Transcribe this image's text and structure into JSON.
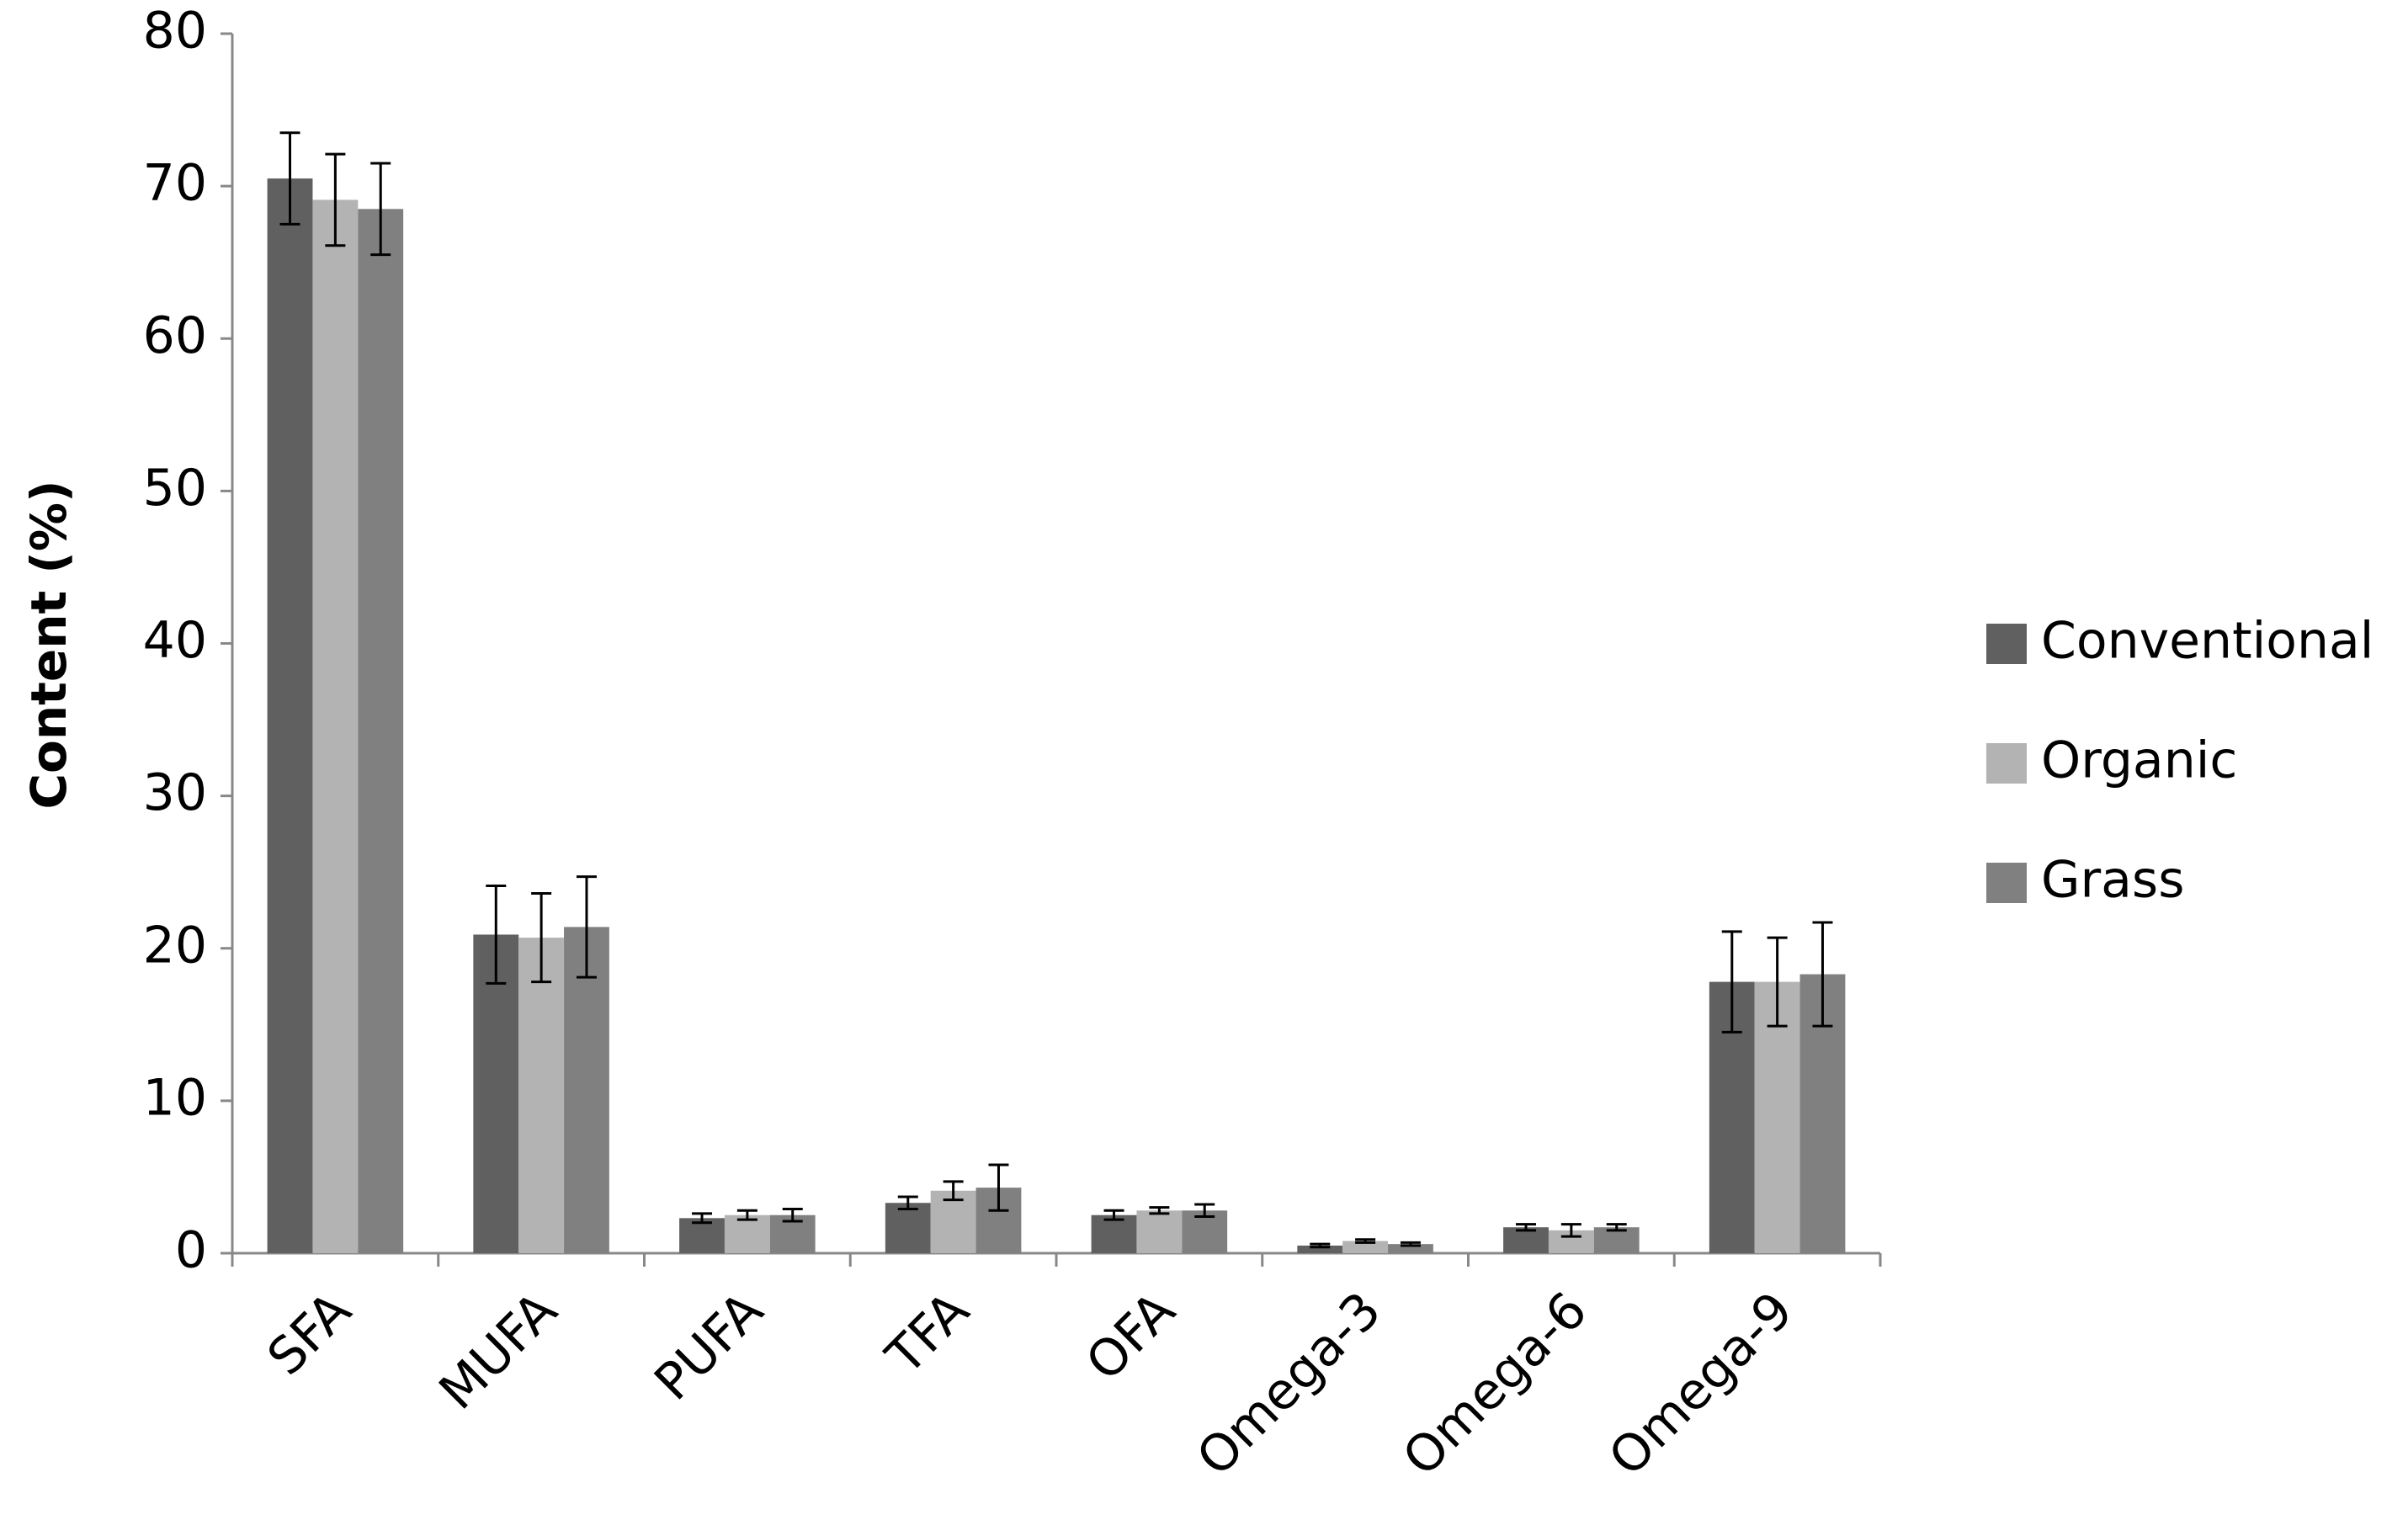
{
  "chart_data": {
    "type": "bar",
    "ylabel": "Content (%)",
    "categories": [
      "SFA",
      "MUFA",
      "PUFA",
      "TFA",
      "OFA",
      "Omega-3",
      "Omega-6",
      "Omega-9"
    ],
    "series": [
      {
        "name": "Conventional",
        "color": "#606060",
        "values": [
          70.5,
          20.9,
          2.3,
          3.3,
          2.5,
          0.5,
          1.7,
          17.8
        ],
        "errors": [
          3.0,
          3.2,
          0.3,
          0.4,
          0.3,
          0.1,
          0.2,
          3.3
        ]
      },
      {
        "name": "Organic",
        "color": "#b3b3b3",
        "values": [
          69.1,
          20.7,
          2.5,
          4.1,
          2.8,
          0.8,
          1.5,
          17.8
        ],
        "errors": [
          3.0,
          2.9,
          0.3,
          0.6,
          0.2,
          0.1,
          0.4,
          2.9
        ]
      },
      {
        "name": "Grass",
        "color": "#808080",
        "values": [
          68.5,
          21.4,
          2.5,
          4.3,
          2.8,
          0.6,
          1.7,
          18.3
        ],
        "errors": [
          3.0,
          3.3,
          0.4,
          1.5,
          0.4,
          0.1,
          0.2,
          3.4
        ]
      }
    ],
    "ylim": [
      0,
      80
    ],
    "yticks": [
      0,
      10,
      20,
      30,
      40,
      50,
      60,
      70,
      80
    ],
    "grid": false,
    "legend": "right"
  }
}
